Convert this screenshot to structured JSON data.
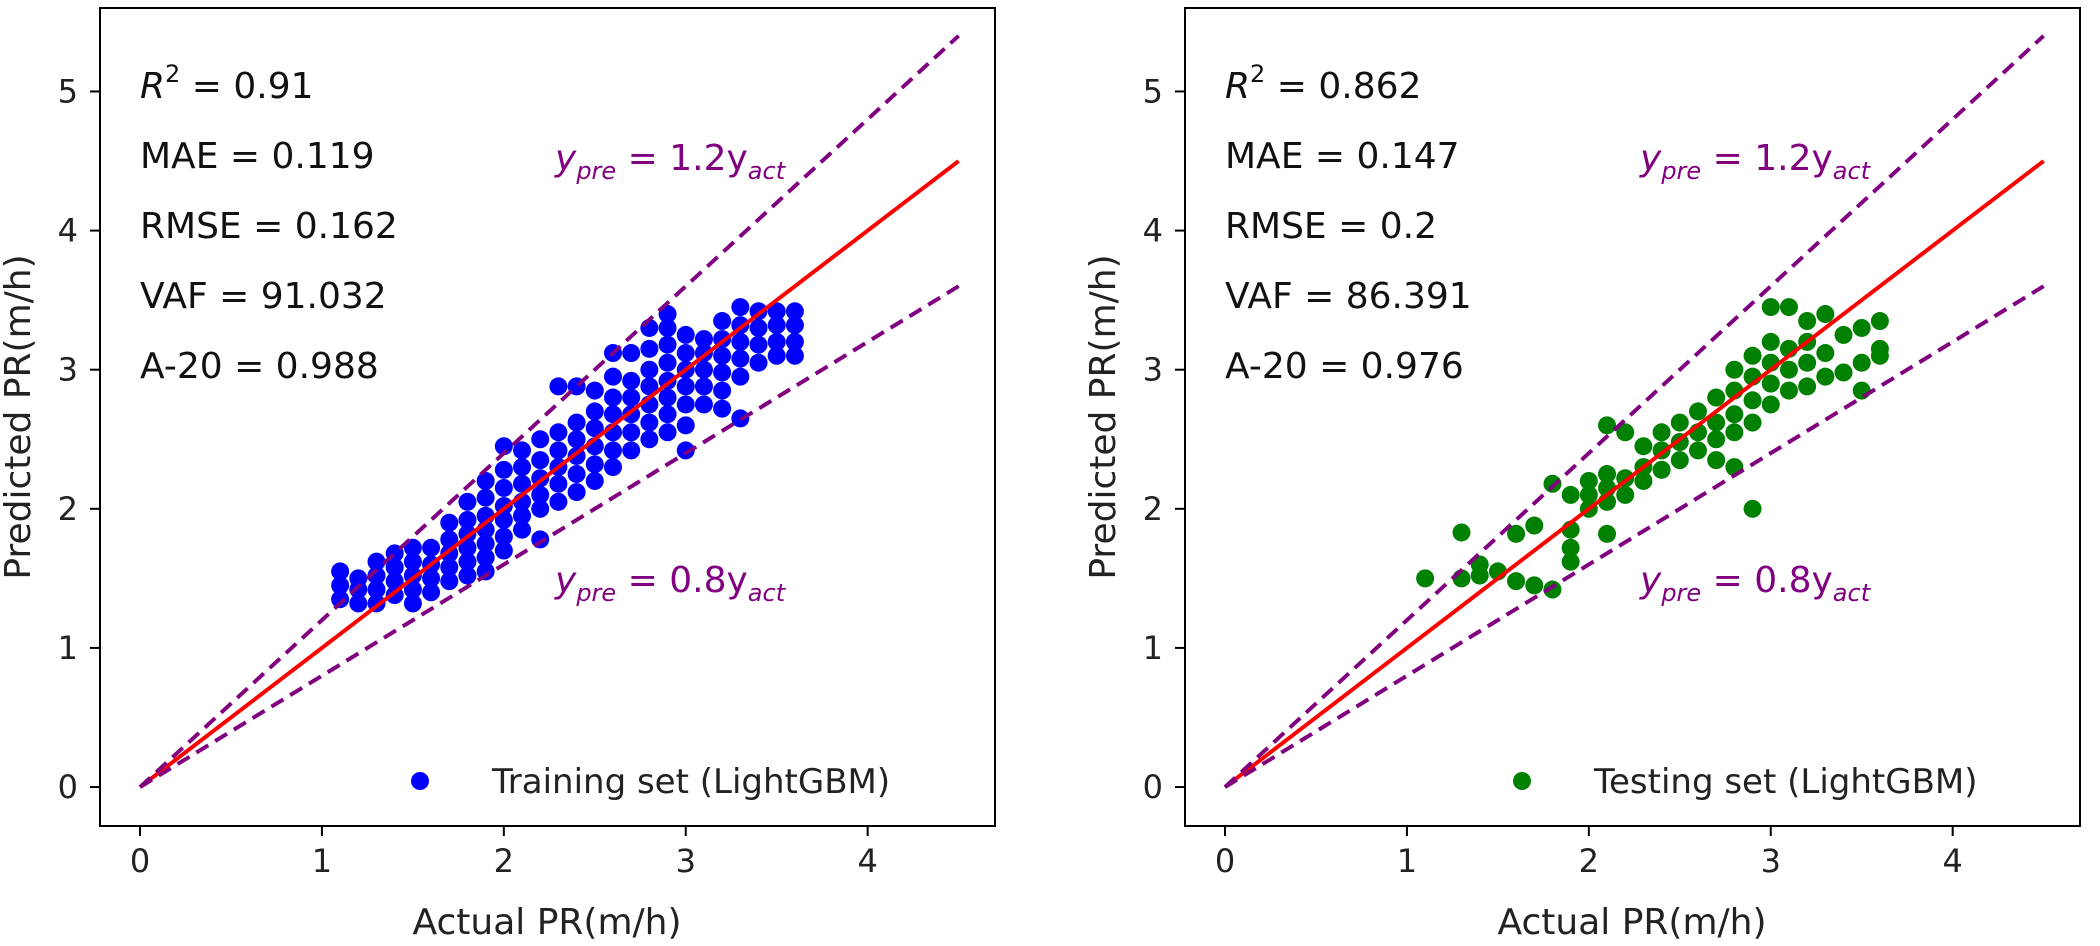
{
  "chart_data": [
    {
      "type": "scatter",
      "xlabel": "Actual PR(m/h)",
      "ylabel": "Predicted PR(m/h)",
      "xlim": [
        -0.22,
        4.7
      ],
      "ylim": [
        -0.28,
        5.6
      ],
      "xticks": [
        "0",
        "1",
        "2",
        "3",
        "4"
      ],
      "yticks": [
        "0",
        "1",
        "2",
        "3",
        "4",
        "5"
      ],
      "stats": [
        "R² = 0.91",
        "MAE = 0.119",
        "RMSE = 0.162",
        "VAF = 91.032",
        "A-20 = 0.988"
      ],
      "stats_parts": {
        "r2_symbol": "R",
        "r2_sup": "2",
        "r2_value": " = 0.91",
        "mae": "MAE = 0.119",
        "rmse": "RMSE = 0.162",
        "vaf": "VAF = 91.032",
        "a20": "A-20 = 0.988"
      },
      "annotations": {
        "upper": {
          "lhs": "y",
          "lhs_sub": "pre",
          "rhs": " = 1.2y",
          "rhs_sub": "act"
        },
        "lower": {
          "lhs": "y",
          "lhs_sub": "pre",
          "rhs": " = 0.8y",
          "rhs_sub": "act"
        }
      },
      "lines": [
        {
          "name": "y = x",
          "color": "#ff0000",
          "style": "solid",
          "x": [
            0,
            4.5
          ],
          "y": [
            0,
            4.5
          ]
        },
        {
          "name": "y = 1.2x",
          "color": "#800080",
          "style": "dashed",
          "x": [
            0,
            4.5
          ],
          "y": [
            0,
            5.4
          ]
        },
        {
          "name": "y = 0.8x",
          "color": "#800080",
          "style": "dashed",
          "x": [
            0,
            4.5
          ],
          "y": [
            0,
            3.6
          ]
        }
      ],
      "legend": "Training set (LightGBM)",
      "legend_position": "lower-right",
      "color": "#0000ff",
      "points": [
        [
          1.1,
          1.35
        ],
        [
          1.1,
          1.45
        ],
        [
          1.1,
          1.55
        ],
        [
          1.2,
          1.32
        ],
        [
          1.2,
          1.42
        ],
        [
          1.2,
          1.5
        ],
        [
          1.3,
          1.32
        ],
        [
          1.3,
          1.42
        ],
        [
          1.3,
          1.52
        ],
        [
          1.3,
          1.62
        ],
        [
          1.4,
          1.38
        ],
        [
          1.4,
          1.48
        ],
        [
          1.4,
          1.58
        ],
        [
          1.4,
          1.68
        ],
        [
          1.5,
          1.32
        ],
        [
          1.5,
          1.42
        ],
        [
          1.5,
          1.52
        ],
        [
          1.5,
          1.62
        ],
        [
          1.5,
          1.72
        ],
        [
          1.6,
          1.4
        ],
        [
          1.6,
          1.5
        ],
        [
          1.6,
          1.6
        ],
        [
          1.6,
          1.72
        ],
        [
          1.7,
          1.48
        ],
        [
          1.7,
          1.58
        ],
        [
          1.7,
          1.68
        ],
        [
          1.7,
          1.78
        ],
        [
          1.7,
          1.9
        ],
        [
          1.8,
          1.52
        ],
        [
          1.8,
          1.62
        ],
        [
          1.8,
          1.72
        ],
        [
          1.8,
          1.82
        ],
        [
          1.8,
          1.92
        ],
        [
          1.8,
          2.05
        ],
        [
          1.9,
          1.55
        ],
        [
          1.9,
          1.65
        ],
        [
          1.9,
          1.75
        ],
        [
          1.9,
          1.85
        ],
        [
          1.9,
          1.95
        ],
        [
          1.9,
          2.08
        ],
        [
          1.9,
          2.2
        ],
        [
          2.0,
          1.7
        ],
        [
          2.0,
          1.8
        ],
        [
          2.0,
          1.92
        ],
        [
          2.0,
          2.02
        ],
        [
          2.0,
          2.15
        ],
        [
          2.0,
          2.28
        ],
        [
          2.0,
          2.45
        ],
        [
          2.1,
          1.85
        ],
        [
          2.1,
          1.95
        ],
        [
          2.1,
          2.05
        ],
        [
          2.1,
          2.18
        ],
        [
          2.1,
          2.3
        ],
        [
          2.1,
          2.42
        ],
        [
          2.2,
          1.78
        ],
        [
          2.2,
          2.0
        ],
        [
          2.2,
          2.1
        ],
        [
          2.2,
          2.22
        ],
        [
          2.2,
          2.35
        ],
        [
          2.2,
          2.5
        ],
        [
          2.3,
          2.05
        ],
        [
          2.3,
          2.18
        ],
        [
          2.3,
          2.3
        ],
        [
          2.3,
          2.42
        ],
        [
          2.3,
          2.55
        ],
        [
          2.3,
          2.88
        ],
        [
          2.4,
          2.12
        ],
        [
          2.4,
          2.25
        ],
        [
          2.4,
          2.38
        ],
        [
          2.4,
          2.5
        ],
        [
          2.4,
          2.62
        ],
        [
          2.4,
          2.88
        ],
        [
          2.5,
          2.2
        ],
        [
          2.5,
          2.32
        ],
        [
          2.5,
          2.45
        ],
        [
          2.5,
          2.58
        ],
        [
          2.5,
          2.7
        ],
        [
          2.5,
          2.85
        ],
        [
          2.6,
          2.3
        ],
        [
          2.6,
          2.42
        ],
        [
          2.6,
          2.55
        ],
        [
          2.6,
          2.68
        ],
        [
          2.6,
          2.8
        ],
        [
          2.6,
          2.95
        ],
        [
          2.6,
          3.12
        ],
        [
          2.7,
          2.42
        ],
        [
          2.7,
          2.55
        ],
        [
          2.7,
          2.68
        ],
        [
          2.7,
          2.8
        ],
        [
          2.7,
          2.92
        ],
        [
          2.7,
          3.12
        ],
        [
          2.8,
          2.5
        ],
        [
          2.8,
          2.62
        ],
        [
          2.8,
          2.75
        ],
        [
          2.8,
          2.88
        ],
        [
          2.8,
          3.0
        ],
        [
          2.8,
          3.15
        ],
        [
          2.8,
          3.3
        ],
        [
          2.9,
          2.55
        ],
        [
          2.9,
          2.68
        ],
        [
          2.9,
          2.8
        ],
        [
          2.9,
          2.92
        ],
        [
          2.9,
          3.05
        ],
        [
          2.9,
          3.18
        ],
        [
          2.9,
          3.3
        ],
        [
          2.9,
          3.4
        ],
        [
          3.0,
          2.42
        ],
        [
          3.0,
          2.6
        ],
        [
          3.0,
          2.75
        ],
        [
          3.0,
          2.88
        ],
        [
          3.0,
          3.0
        ],
        [
          3.0,
          3.12
        ],
        [
          3.0,
          3.25
        ],
        [
          3.1,
          2.75
        ],
        [
          3.1,
          2.88
        ],
        [
          3.1,
          3.0
        ],
        [
          3.1,
          3.12
        ],
        [
          3.1,
          3.22
        ],
        [
          3.2,
          2.72
        ],
        [
          3.2,
          2.85
        ],
        [
          3.2,
          2.98
        ],
        [
          3.2,
          3.1
        ],
        [
          3.2,
          3.22
        ],
        [
          3.2,
          3.35
        ],
        [
          3.3,
          2.65
        ],
        [
          3.3,
          2.95
        ],
        [
          3.3,
          3.08
        ],
        [
          3.3,
          3.2
        ],
        [
          3.3,
          3.32
        ],
        [
          3.3,
          3.45
        ],
        [
          3.4,
          3.05
        ],
        [
          3.4,
          3.18
        ],
        [
          3.4,
          3.3
        ],
        [
          3.4,
          3.42
        ],
        [
          3.5,
          3.1
        ],
        [
          3.5,
          3.2
        ],
        [
          3.5,
          3.32
        ],
        [
          3.5,
          3.42
        ],
        [
          3.6,
          3.1
        ],
        [
          3.6,
          3.2
        ],
        [
          3.6,
          3.32
        ],
        [
          3.6,
          3.42
        ]
      ]
    },
    {
      "type": "scatter",
      "xlabel": "Actual PR(m/h)",
      "ylabel": "Predicted PR(m/h)",
      "xlim": [
        -0.22,
        4.7
      ],
      "ylim": [
        -0.28,
        5.6
      ],
      "xticks": [
        "0",
        "1",
        "2",
        "3",
        "4"
      ],
      "yticks": [
        "0",
        "1",
        "2",
        "3",
        "4",
        "5"
      ],
      "stats": [
        "R² = 0.862",
        "MAE = 0.147",
        "RMSE = 0.2",
        "VAF = 86.391",
        "A-20 = 0.976"
      ],
      "stats_parts": {
        "r2_symbol": "R",
        "r2_sup": "2",
        "r2_value": " = 0.862",
        "mae": "MAE = 0.147",
        "rmse": "RMSE = 0.2",
        "vaf": "VAF = 86.391",
        "a20": "A-20 = 0.976"
      },
      "annotations": {
        "upper": {
          "lhs": "y",
          "lhs_sub": "pre",
          "rhs": " = 1.2y",
          "rhs_sub": "act"
        },
        "lower": {
          "lhs": "y",
          "lhs_sub": "pre",
          "rhs": " = 0.8y",
          "rhs_sub": "act"
        }
      },
      "lines": [
        {
          "name": "y = x",
          "color": "#ff0000",
          "style": "solid",
          "x": [
            0,
            4.5
          ],
          "y": [
            0,
            4.5
          ]
        },
        {
          "name": "y = 1.2x",
          "color": "#800080",
          "style": "dashed",
          "x": [
            0,
            4.5
          ],
          "y": [
            0,
            5.4
          ]
        },
        {
          "name": "y = 0.8x",
          "color": "#800080",
          "style": "dashed",
          "x": [
            0,
            4.5
          ],
          "y": [
            0,
            3.6
          ]
        }
      ],
      "legend": "Testing set (LightGBM)",
      "legend_position": "lower-right",
      "color": "#008000",
      "points": [
        [
          1.1,
          1.5
        ],
        [
          1.3,
          1.5
        ],
        [
          1.3,
          1.83
        ],
        [
          1.4,
          1.52
        ],
        [
          1.4,
          1.6
        ],
        [
          1.5,
          1.55
        ],
        [
          1.6,
          1.48
        ],
        [
          1.6,
          1.82
        ],
        [
          1.7,
          1.45
        ],
        [
          1.7,
          1.88
        ],
        [
          1.8,
          1.42
        ],
        [
          1.8,
          2.18
        ],
        [
          1.9,
          1.62
        ],
        [
          1.9,
          1.72
        ],
        [
          1.9,
          1.85
        ],
        [
          1.9,
          2.1
        ],
        [
          2.0,
          2.0
        ],
        [
          2.0,
          2.1
        ],
        [
          2.0,
          2.2
        ],
        [
          2.1,
          1.82
        ],
        [
          2.1,
          2.05
        ],
        [
          2.1,
          2.15
        ],
        [
          2.1,
          2.25
        ],
        [
          2.1,
          2.6
        ],
        [
          2.2,
          2.1
        ],
        [
          2.2,
          2.22
        ],
        [
          2.2,
          2.55
        ],
        [
          2.3,
          2.2
        ],
        [
          2.3,
          2.3
        ],
        [
          2.3,
          2.45
        ],
        [
          2.4,
          2.28
        ],
        [
          2.4,
          2.42
        ],
        [
          2.4,
          2.55
        ],
        [
          2.5,
          2.35
        ],
        [
          2.5,
          2.48
        ],
        [
          2.5,
          2.62
        ],
        [
          2.6,
          2.42
        ],
        [
          2.6,
          2.55
        ],
        [
          2.6,
          2.7
        ],
        [
          2.7,
          2.35
        ],
        [
          2.7,
          2.5
        ],
        [
          2.7,
          2.62
        ],
        [
          2.7,
          2.8
        ],
        [
          2.8,
          2.3
        ],
        [
          2.8,
          2.55
        ],
        [
          2.8,
          2.68
        ],
        [
          2.8,
          2.85
        ],
        [
          2.8,
          3.0
        ],
        [
          2.9,
          2.0
        ],
        [
          2.9,
          2.62
        ],
        [
          2.9,
          2.78
        ],
        [
          2.9,
          2.95
        ],
        [
          2.9,
          3.1
        ],
        [
          3.0,
          2.75
        ],
        [
          3.0,
          2.9
        ],
        [
          3.0,
          3.05
        ],
        [
          3.0,
          3.2
        ],
        [
          3.0,
          3.45
        ],
        [
          3.1,
          2.85
        ],
        [
          3.1,
          3.0
        ],
        [
          3.1,
          3.15
        ],
        [
          3.1,
          3.45
        ],
        [
          3.2,
          2.88
        ],
        [
          3.2,
          3.05
        ],
        [
          3.2,
          3.2
        ],
        [
          3.2,
          3.35
        ],
        [
          3.3,
          2.95
        ],
        [
          3.3,
          3.12
        ],
        [
          3.3,
          3.4
        ],
        [
          3.4,
          2.98
        ],
        [
          3.4,
          3.25
        ],
        [
          3.5,
          2.85
        ],
        [
          3.5,
          3.05
        ],
        [
          3.5,
          3.3
        ],
        [
          3.6,
          3.1
        ],
        [
          3.6,
          3.15
        ],
        [
          3.6,
          3.35
        ]
      ]
    }
  ]
}
